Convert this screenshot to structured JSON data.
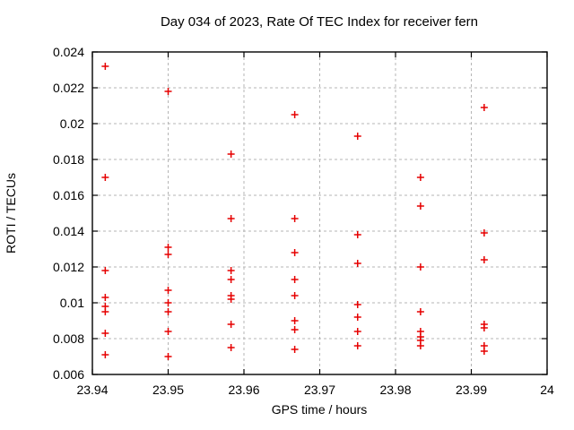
{
  "window": {
    "background": "#ffffff"
  },
  "chart_data": {
    "type": "scatter",
    "title": "Day 034 of 2023, Rate Of TEC Index for receiver fern",
    "xlabel": "GPS time / hours",
    "ylabel": "ROTI / TECUs",
    "xlim": [
      23.94,
      24
    ],
    "ylim": [
      0.006,
      0.024
    ],
    "grid": true,
    "legend": "none",
    "x_ticks": {
      "values": [
        23.94,
        23.95,
        23.96,
        23.97,
        23.98,
        23.99,
        24
      ],
      "labels": [
        "23.94",
        "23.95",
        "23.96",
        "23.97",
        "23.98",
        "23.99",
        "24"
      ]
    },
    "y_ticks": {
      "values": [
        0.006,
        0.008,
        0.01,
        0.012,
        0.014,
        0.016,
        0.018,
        0.02,
        0.022,
        0.024
      ],
      "labels": [
        "0.006",
        "0.008",
        "0.01",
        "0.012",
        "0.014",
        "0.016",
        "0.018",
        "0.02",
        "0.022",
        "0.024"
      ]
    },
    "marker": {
      "symbol": "plus",
      "color": "#e60000",
      "size": 8
    },
    "series": [
      {
        "name": "ROTI",
        "points": [
          [
            23.9417,
            0.0232
          ],
          [
            23.9417,
            0.017
          ],
          [
            23.9417,
            0.0118
          ],
          [
            23.9417,
            0.0103
          ],
          [
            23.9417,
            0.0098
          ],
          [
            23.9417,
            0.0095
          ],
          [
            23.9417,
            0.0083
          ],
          [
            23.9417,
            0.0071
          ],
          [
            23.95,
            0.0218
          ],
          [
            23.95,
            0.0131
          ],
          [
            23.95,
            0.0127
          ],
          [
            23.95,
            0.0107
          ],
          [
            23.95,
            0.01
          ],
          [
            23.95,
            0.0095
          ],
          [
            23.95,
            0.0084
          ],
          [
            23.95,
            0.007
          ],
          [
            23.9583,
            0.0183
          ],
          [
            23.9583,
            0.0147
          ],
          [
            23.9583,
            0.0118
          ],
          [
            23.9583,
            0.0113
          ],
          [
            23.9583,
            0.0104
          ],
          [
            23.9583,
            0.0102
          ],
          [
            23.9583,
            0.0088
          ],
          [
            23.9583,
            0.0075
          ],
          [
            23.9667,
            0.0205
          ],
          [
            23.9667,
            0.0147
          ],
          [
            23.9667,
            0.0128
          ],
          [
            23.9667,
            0.0113
          ],
          [
            23.9667,
            0.0104
          ],
          [
            23.9667,
            0.009
          ],
          [
            23.9667,
            0.0085
          ],
          [
            23.9667,
            0.0074
          ],
          [
            23.975,
            0.0193
          ],
          [
            23.975,
            0.0138
          ],
          [
            23.975,
            0.0122
          ],
          [
            23.975,
            0.0099
          ],
          [
            23.975,
            0.0092
          ],
          [
            23.975,
            0.0084
          ],
          [
            23.975,
            0.0076
          ],
          [
            23.9833,
            0.017
          ],
          [
            23.9833,
            0.0154
          ],
          [
            23.9833,
            0.012
          ],
          [
            23.9833,
            0.0095
          ],
          [
            23.9833,
            0.0084
          ],
          [
            23.9833,
            0.0081
          ],
          [
            23.9833,
            0.0079
          ],
          [
            23.9833,
            0.0076
          ],
          [
            23.9917,
            0.0209
          ],
          [
            23.9917,
            0.0139
          ],
          [
            23.9917,
            0.0124
          ],
          [
            23.9917,
            0.0088
          ],
          [
            23.9917,
            0.0086
          ],
          [
            23.9917,
            0.0076
          ],
          [
            23.9917,
            0.0073
          ]
        ]
      }
    ],
    "colors": {
      "marker": "#e60000",
      "grid": "#b5b5b5",
      "border": "#000000",
      "text": "#000000",
      "background": "#ffffff"
    }
  }
}
